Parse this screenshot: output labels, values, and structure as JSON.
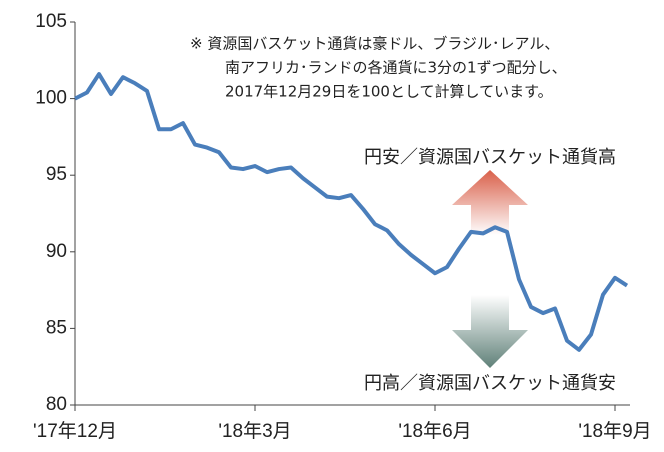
{
  "chart_data": {
    "type": "line",
    "categories": [
      "'17年12月",
      null,
      null,
      null,
      null,
      null,
      null,
      null,
      null,
      null,
      null,
      null,
      null,
      null,
      null,
      "'18年3月",
      null,
      null,
      null,
      null,
      null,
      null,
      null,
      null,
      null,
      null,
      null,
      null,
      null,
      null,
      "'18年6月",
      null,
      null,
      null,
      null,
      null,
      null,
      null,
      null,
      null,
      null,
      null,
      null,
      null,
      null,
      "'18年9月",
      null
    ],
    "values": [
      100,
      100.4,
      101.6,
      100.3,
      101.4,
      101.0,
      100.5,
      98.0,
      98.0,
      98.4,
      97.0,
      96.8,
      96.5,
      95.5,
      95.4,
      95.6,
      95.2,
      95.4,
      95.5,
      94.8,
      94.2,
      93.6,
      93.5,
      93.7,
      92.8,
      91.8,
      91.4,
      90.5,
      89.8,
      89.2,
      88.6,
      89.0,
      90.2,
      91.3,
      91.2,
      91.6,
      91.3,
      88.2,
      86.4,
      86.0,
      86.3,
      84.2,
      83.6,
      84.6,
      87.2,
      88.3,
      87.8
    ],
    "color": "#4a7ebb",
    "ylim": [
      80,
      105
    ],
    "yticks": [
      80,
      85,
      90,
      95,
      100,
      105
    ],
    "grid": false,
    "annotations": [
      "※ 資源国バスケット通貨は豪ドル、ブラジル･レアル、",
      "南アフリカ･ランドの各通貨に3分の1ずつ配分し、",
      "2017年12月29日を100として計算しています。",
      "円安／資源国バスケット通貨高",
      "円高／資源国バスケット通貨安"
    ]
  }
}
